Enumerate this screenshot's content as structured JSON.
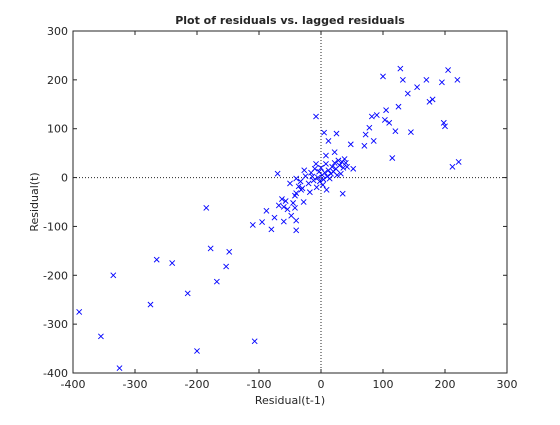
{
  "chart_data": {
    "type": "scatter",
    "title": "Plot of residuals vs. lagged residuals",
    "xlabel": "Residual(t-1)",
    "ylabel": "Residual(t)",
    "xlim": [
      -400,
      300
    ],
    "ylim": [
      -400,
      300
    ],
    "x_ticks": [
      "-400",
      "-300",
      "-200",
      "-100",
      "0",
      "100",
      "200",
      "300"
    ],
    "y_ticks": [
      "-400",
      "-300",
      "-200",
      "-100",
      "0",
      "100",
      "200",
      "300"
    ],
    "grid": false,
    "reference_lines": [
      {
        "axis": "x",
        "value": 0,
        "style": "dotted"
      },
      {
        "axis": "y",
        "value": 0,
        "style": "dotted"
      }
    ],
    "marker": "x",
    "series": [
      {
        "color": "#0000ff",
        "points": [
          [
            -390,
            -275
          ],
          [
            -355,
            -325
          ],
          [
            -335,
            -200
          ],
          [
            -325,
            -390
          ],
          [
            -275,
            -260
          ],
          [
            -265,
            -168
          ],
          [
            -240,
            -175
          ],
          [
            -215,
            -237
          ],
          [
            -200,
            -355
          ],
          [
            -185,
            -62
          ],
          [
            -178,
            -145
          ],
          [
            -168,
            -213
          ],
          [
            -153,
            -182
          ],
          [
            -148,
            -152
          ],
          [
            -107,
            -335
          ],
          [
            -110,
            -97
          ],
          [
            -95,
            -91
          ],
          [
            -88,
            -68
          ],
          [
            -80,
            -106
          ],
          [
            -75,
            -82
          ],
          [
            -68,
            -57
          ],
          [
            -60,
            -90
          ],
          [
            -54,
            -65
          ],
          [
            -48,
            -78
          ],
          [
            -42,
            -37
          ],
          [
            -70,
            8
          ],
          [
            -50,
            -12
          ],
          [
            -40,
            -2
          ],
          [
            -32,
            -25
          ],
          [
            -28,
            -50
          ],
          [
            -25,
            3
          ],
          [
            -20,
            -12
          ],
          [
            -16,
            10
          ],
          [
            -12,
            -6
          ],
          [
            -10,
            18
          ],
          [
            -7,
            -20
          ],
          [
            -5,
            0
          ],
          [
            -3,
            12
          ],
          [
            -2,
            -8
          ],
          [
            0,
            20
          ],
          [
            2,
            5
          ],
          [
            4,
            -4
          ],
          [
            6,
            10
          ],
          [
            8,
            28
          ],
          [
            10,
            2
          ],
          [
            12,
            15
          ],
          [
            14,
            -2
          ],
          [
            16,
            8
          ],
          [
            18,
            22
          ],
          [
            20,
            12
          ],
          [
            22,
            30
          ],
          [
            24,
            18
          ],
          [
            26,
            5
          ],
          [
            28,
            35
          ],
          [
            30,
            25
          ],
          [
            32,
            8
          ],
          [
            34,
            32
          ],
          [
            36,
            20
          ],
          [
            38,
            38
          ],
          [
            40,
            30
          ],
          [
            42,
            22
          ],
          [
            35,
            -33
          ],
          [
            22,
            52
          ],
          [
            12,
            75
          ],
          [
            -40,
            -32
          ],
          [
            -36,
            -18
          ],
          [
            -45,
            -52
          ],
          [
            -33,
            -8
          ],
          [
            -27,
            15
          ],
          [
            -18,
            -30
          ],
          [
            -14,
            2
          ],
          [
            -8,
            28
          ],
          [
            3,
            -15
          ],
          [
            9,
            -25
          ],
          [
            -40,
            -88
          ],
          [
            -40,
            -108
          ],
          [
            -42,
            -62
          ],
          [
            -57,
            -48
          ],
          [
            -63,
            -44
          ],
          [
            -30,
            -22
          ],
          [
            -60,
            -60
          ],
          [
            -8,
            125
          ],
          [
            8,
            45
          ],
          [
            5,
            92
          ],
          [
            25,
            90
          ],
          [
            48,
            68
          ],
          [
            52,
            18
          ],
          [
            70,
            65
          ],
          [
            72,
            88
          ],
          [
            78,
            102
          ],
          [
            82,
            125
          ],
          [
            85,
            75
          ],
          [
            90,
            128
          ],
          [
            100,
            207
          ],
          [
            103,
            118
          ],
          [
            105,
            138
          ],
          [
            110,
            112
          ],
          [
            115,
            40
          ],
          [
            120,
            95
          ],
          [
            125,
            145
          ],
          [
            128,
            223
          ],
          [
            132,
            200
          ],
          [
            140,
            172
          ],
          [
            145,
            93
          ],
          [
            155,
            185
          ],
          [
            170,
            200
          ],
          [
            175,
            155
          ],
          [
            180,
            160
          ],
          [
            195,
            195
          ],
          [
            198,
            112
          ],
          [
            200,
            105
          ],
          [
            205,
            220
          ],
          [
            212,
            22
          ],
          [
            220,
            200
          ],
          [
            222,
            32
          ]
        ]
      }
    ]
  }
}
